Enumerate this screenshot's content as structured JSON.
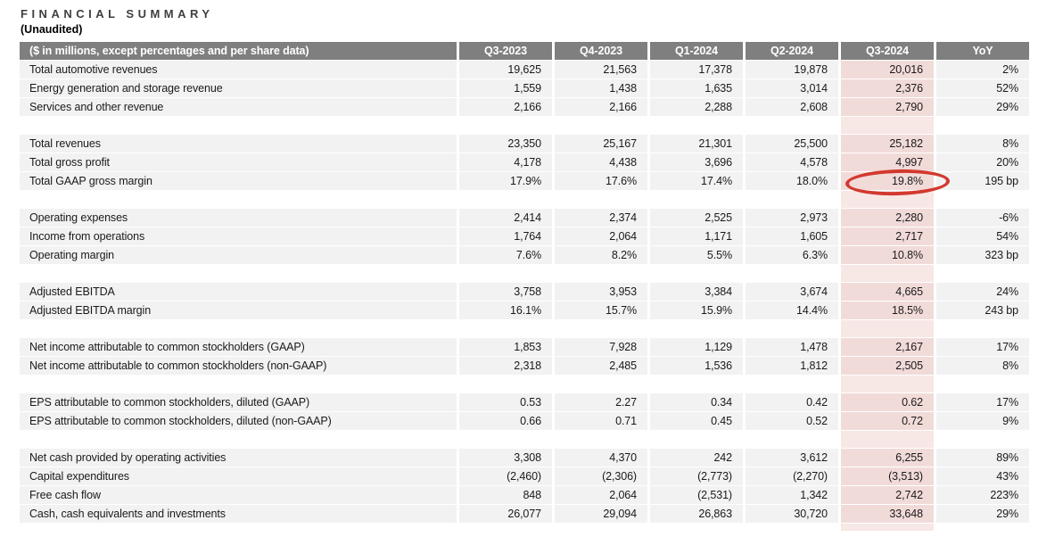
{
  "title": "FINANCIAL SUMMARY",
  "subtitle": "(Unaudited)",
  "colors": {
    "header_bg": "#7f7f7f",
    "row_bg": "#f2f2f2",
    "highlight_column_bg": "#f1dbd9",
    "annotation_red": "#d2392e"
  },
  "table": {
    "label_header": "($ in millions, except percentages and per share data)",
    "columns": [
      "Q3-2023",
      "Q4-2023",
      "Q1-2024",
      "Q2-2024",
      "Q3-2024",
      "YoY"
    ],
    "highlight_column": "Q3-2024",
    "annotation": {
      "shape": "red-ellipse",
      "target_row": "Total GAAP gross margin",
      "target_column": "Q3-2024",
      "target_value": "19.8%"
    },
    "groups": [
      {
        "rows": [
          {
            "label": "Total automotive revenues",
            "values": [
              "19,625",
              "21,563",
              "17,378",
              "19,878",
              "20,016",
              "2%"
            ]
          },
          {
            "label": "Energy generation and storage revenue",
            "values": [
              "1,559",
              "1,438",
              "1,635",
              "3,014",
              "2,376",
              "52%"
            ]
          },
          {
            "label": "Services and other revenue",
            "values": [
              "2,166",
              "2,166",
              "2,288",
              "2,608",
              "2,790",
              "29%"
            ]
          }
        ]
      },
      {
        "rows": [
          {
            "label": "Total revenues",
            "values": [
              "23,350",
              "25,167",
              "21,301",
              "25,500",
              "25,182",
              "8%"
            ]
          },
          {
            "label": "Total gross profit",
            "values": [
              "4,178",
              "4,438",
              "3,696",
              "4,578",
              "4,997",
              "20%"
            ]
          },
          {
            "label": "Total GAAP gross margin",
            "values": [
              "17.9%",
              "17.6%",
              "17.4%",
              "18.0%",
              "19.8%",
              "195 bp"
            ]
          }
        ]
      },
      {
        "rows": [
          {
            "label": "Operating expenses",
            "values": [
              "2,414",
              "2,374",
              "2,525",
              "2,973",
              "2,280",
              "-6%"
            ]
          },
          {
            "label": "Income from operations",
            "values": [
              "1,764",
              "2,064",
              "1,171",
              "1,605",
              "2,717",
              "54%"
            ]
          },
          {
            "label": "Operating margin",
            "values": [
              "7.6%",
              "8.2%",
              "5.5%",
              "6.3%",
              "10.8%",
              "323 bp"
            ]
          }
        ]
      },
      {
        "rows": [
          {
            "label": "Adjusted EBITDA",
            "values": [
              "3,758",
              "3,953",
              "3,384",
              "3,674",
              "4,665",
              "24%"
            ]
          },
          {
            "label": "Adjusted EBITDA margin",
            "values": [
              "16.1%",
              "15.7%",
              "15.9%",
              "14.4%",
              "18.5%",
              "243 bp"
            ]
          }
        ]
      },
      {
        "rows": [
          {
            "label": "Net income attributable to common stockholders (GAAP)",
            "values": [
              "1,853",
              "7,928",
              "1,129",
              "1,478",
              "2,167",
              "17%"
            ]
          },
          {
            "label": "Net income attributable to common stockholders (non-GAAP)",
            "values": [
              "2,318",
              "2,485",
              "1,536",
              "1,812",
              "2,505",
              "8%"
            ]
          }
        ]
      },
      {
        "rows": [
          {
            "label": "EPS attributable to common stockholders, diluted (GAAP)",
            "values": [
              "0.53",
              "2.27",
              "0.34",
              "0.42",
              "0.62",
              "17%"
            ]
          },
          {
            "label": "EPS attributable to common stockholders, diluted (non-GAAP)",
            "values": [
              "0.66",
              "0.71",
              "0.45",
              "0.52",
              "0.72",
              "9%"
            ]
          }
        ]
      },
      {
        "rows": [
          {
            "label": "Net cash provided by operating activities",
            "values": [
              "3,308",
              "4,370",
              "242",
              "3,612",
              "6,255",
              "89%"
            ]
          },
          {
            "label": "Capital expenditures",
            "values": [
              "(2,460)",
              "(2,306)",
              "(2,773)",
              "(2,270)",
              "(3,513)",
              "43%"
            ]
          },
          {
            "label": "Free cash flow",
            "values": [
              "848",
              "2,064",
              "(2,531)",
              "1,342",
              "2,742",
              "223%"
            ]
          },
          {
            "label": "Cash, cash equivalents and investments",
            "values": [
              "26,077",
              "29,094",
              "26,863",
              "30,720",
              "33,648",
              "29%"
            ]
          }
        ]
      }
    ]
  }
}
